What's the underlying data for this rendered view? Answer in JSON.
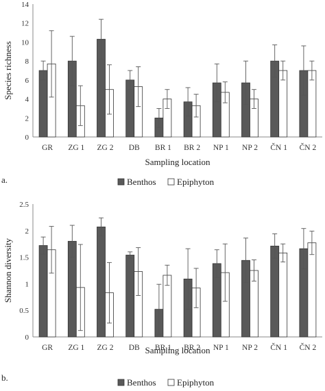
{
  "chart_data": [
    {
      "type": "bar",
      "panel_label": "a.",
      "xlabel": "Sampling location",
      "ylabel": "Species richness",
      "ylim": [
        0,
        14
      ],
      "yticks": [
        0,
        2,
        4,
        6,
        8,
        10,
        12,
        14
      ],
      "grid": false,
      "legend_position": "bottom",
      "categories": [
        "GR",
        "ZG 1",
        "ZG 2",
        "DB",
        "BR 1",
        "BR 2",
        "NP 1",
        "NP 2",
        "ČN 1",
        "ČN 2"
      ],
      "series": [
        {
          "name": "Benthos",
          "color": "#595959",
          "values": [
            7,
            8,
            10.3,
            6,
            2,
            3.7,
            5.7,
            5.7,
            8,
            7
          ],
          "errors": [
            1,
            2.6,
            2.1,
            1,
            1,
            1.5,
            2,
            2.3,
            1.7,
            2.6
          ]
        },
        {
          "name": "Epiphyton",
          "color": "#ffffff",
          "values": [
            7.7,
            3.3,
            5,
            5.3,
            4,
            3.3,
            4.7,
            4,
            7,
            7
          ],
          "errors": [
            3.5,
            2.1,
            2.6,
            2.1,
            1,
            1.2,
            1.1,
            1,
            1,
            1
          ]
        }
      ]
    },
    {
      "type": "bar",
      "panel_label": "b.",
      "xlabel": "Sampling location",
      "ylabel": "Shannon diversity",
      "ylim": [
        0,
        2.5
      ],
      "yticks": [
        0,
        0.5,
        1,
        1.5,
        2,
        2.5
      ],
      "grid": false,
      "legend_position": "bottom",
      "categories": [
        "GR",
        "ZG 1",
        "ZG 2",
        "DB",
        "BR 1",
        "BR 2",
        "NP 1",
        "NP 2",
        "ČN 1",
        "ČN 2"
      ],
      "series": [
        {
          "name": "Benthos",
          "color": "#595959",
          "values": [
            1.72,
            1.8,
            2.07,
            1.54,
            0.52,
            1.09,
            1.38,
            1.44,
            1.71,
            1.66
          ],
          "errors": [
            0.16,
            0.3,
            0.17,
            0.06,
            0.47,
            0.57,
            0.26,
            0.42,
            0.23,
            0.38
          ]
        },
        {
          "name": "Epiphyton",
          "color": "#ffffff",
          "values": [
            1.64,
            0.93,
            0.83,
            1.23,
            1.16,
            0.92,
            1.21,
            1.25,
            1.58,
            1.77
          ],
          "errors": [
            0.44,
            0.81,
            0.57,
            0.45,
            0.19,
            0.37,
            0.54,
            0.2,
            0.17,
            0.22
          ]
        }
      ]
    }
  ]
}
